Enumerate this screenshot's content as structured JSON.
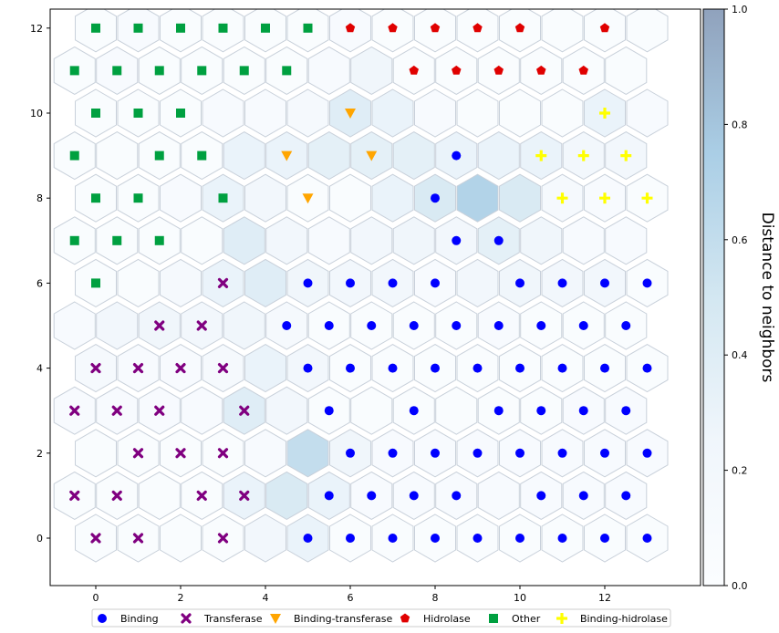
{
  "chart_data": {
    "type": "hexbin-som",
    "title": "",
    "xlabel": "",
    "ylabel": "",
    "xlim": [
      -1.7,
      14.3
    ],
    "ylim": [
      -1.15,
      12.45
    ],
    "x_ticks": [
      0,
      2,
      4,
      6,
      8,
      10,
      12
    ],
    "y_ticks": [
      0,
      2,
      4,
      6,
      8,
      10,
      12
    ],
    "grid_rows": 13,
    "grid_cols": 14,
    "colormap": "Blues",
    "colorbar": {
      "label": "Distance to neighbors",
      "range": [
        0,
        1
      ],
      "ticks": [
        0,
        0.2,
        0.4,
        0.6,
        0.8,
        1.0
      ],
      "tick_labels": [
        "0.0",
        "0.2",
        "0.4",
        "0.6",
        "0.8",
        "1.0"
      ]
    },
    "distance_map": [
      [
        0.05,
        0.05,
        0.05,
        0.05,
        0.2,
        0.3,
        0.05,
        0.05,
        0.05,
        0.05,
        0.05,
        0.05,
        0.05,
        0.05
      ],
      [
        0.05,
        0.05,
        0.05,
        0.05,
        0.3,
        0.45,
        0.3,
        0.1,
        0.1,
        0.1,
        0.1,
        0.1,
        0.1,
        0.1
      ],
      [
        0.05,
        0.05,
        0.05,
        0.05,
        0.1,
        0.6,
        0.25,
        0.1,
        0.1,
        0.1,
        0.1,
        0.1,
        0.1,
        0.1
      ],
      [
        0.1,
        0.1,
        0.1,
        0.1,
        0.4,
        0.2,
        0.05,
        0.05,
        0.05,
        0.05,
        0.05,
        0.05,
        0.1,
        0.1
      ],
      [
        0.15,
        0.1,
        0.1,
        0.15,
        0.3,
        0.2,
        0.05,
        0.05,
        0.05,
        0.05,
        0.05,
        0.05,
        0.05,
        0.05
      ],
      [
        0.1,
        0.2,
        0.25,
        0.2,
        0.25,
        0.15,
        0.05,
        0.05,
        0.05,
        0.05,
        0.1,
        0.05,
        0.05,
        0.05
      ],
      [
        0.05,
        0.05,
        0.15,
        0.3,
        0.4,
        0.25,
        0.2,
        0.2,
        0.1,
        0.2,
        0.25,
        0.2,
        0.2,
        0.05
      ],
      [
        0.05,
        0.05,
        0.05,
        0.05,
        0.4,
        0.2,
        0.1,
        0.2,
        0.25,
        0.2,
        0.35,
        0.25,
        0.1,
        0.1
      ],
      [
        0.05,
        0.05,
        0.1,
        0.3,
        0.2,
        0.05,
        0.05,
        0.3,
        0.45,
        0.7,
        0.45,
        0.15,
        0.1,
        0.05
      ],
      [
        0.05,
        0.05,
        0.05,
        0.05,
        0.3,
        0.3,
        0.35,
        0.35,
        0.35,
        0.3,
        0.3,
        0.3,
        0.2,
        0.2
      ],
      [
        0.05,
        0.05,
        0.05,
        0.1,
        0.1,
        0.15,
        0.4,
        0.3,
        0.1,
        0.05,
        0.05,
        0.05,
        0.3,
        0.1
      ],
      [
        0.05,
        0.1,
        0.05,
        0.05,
        0.05,
        0.05,
        0.1,
        0.25,
        0.05,
        0.05,
        0.05,
        0.05,
        0.05,
        0.05
      ],
      [
        0.05,
        0.1,
        0.05,
        0.05,
        0.05,
        0.05,
        0.1,
        0.05,
        0.05,
        0.05,
        0.05,
        0.05,
        0.05,
        0.05
      ]
    ],
    "classes": [
      {
        "name": "Binding",
        "marker": "circle",
        "color": "#0000ff"
      },
      {
        "name": "Transferase",
        "marker": "x",
        "color": "#800080"
      },
      {
        "name": "Binding-transferase",
        "marker": "triangle-down",
        "color": "#ffa500"
      },
      {
        "name": "Hidrolase",
        "marker": "pentagon",
        "color": "#e00000"
      },
      {
        "name": "Other",
        "marker": "square",
        "color": "#00a040"
      },
      {
        "name": "Binding-hidrolase",
        "marker": "plus",
        "color": "#ffff00"
      }
    ],
    "points": [
      {
        "cls": 4,
        "r": 12,
        "c": [
          0,
          1,
          2,
          3,
          4,
          5
        ]
      },
      {
        "cls": 3,
        "r": 12,
        "c": [
          7,
          8,
          9,
          11,
          13
        ]
      },
      {
        "cls": 4,
        "r": 11,
        "c": [
          0,
          1,
          2,
          3,
          4,
          5
        ]
      },
      {
        "cls": 3,
        "r": 11,
        "c": [
          6,
          7,
          8,
          9,
          10,
          12
        ]
      },
      {
        "cls": 4,
        "r": 10,
        "c": [
          0,
          1,
          2,
          3,
          4,
          5
        ]
      },
      {
        "cls": 3,
        "r": 10,
        "c": [
          8,
          9,
          10,
          11,
          12
        ]
      },
      {
        "cls": 4,
        "r": 9,
        "c": [
          0,
          1,
          2
        ]
      },
      {
        "cls": 2,
        "r": 9,
        "c": [
          6
        ]
      },
      {
        "cls": 5,
        "r": 9,
        "c": [
          12
        ]
      },
      {
        "cls": 4,
        "r": 8,
        "c": [
          0,
          2,
          3
        ]
      },
      {
        "cls": 2,
        "r": 8,
        "c": [
          5,
          7
        ]
      },
      {
        "cls": 0,
        "r": 8,
        "c": [
          9
        ]
      },
      {
        "cls": 5,
        "r": 8,
        "c": [
          11,
          12,
          13
        ]
      },
      {
        "cls": 4,
        "r": 7,
        "c": [
          0,
          1,
          3
        ]
      },
      {
        "cls": 2,
        "r": 7,
        "c": [
          5
        ]
      },
      {
        "cls": 0,
        "r": 7,
        "c": [
          8
        ]
      },
      {
        "cls": 5,
        "r": 7,
        "c": [
          11,
          12,
          13
        ]
      },
      {
        "cls": 4,
        "r": 6,
        "c": [
          0,
          1,
          2
        ]
      },
      {
        "cls": 0,
        "r": 6,
        "c": [
          9,
          10
        ]
      },
      {
        "cls": 4,
        "r": 5,
        "c": [
          0
        ]
      },
      {
        "cls": 1,
        "r": 5,
        "c": [
          3
        ]
      },
      {
        "cls": 0,
        "r": 5,
        "c": [
          5,
          6,
          7,
          8,
          10,
          11,
          12,
          13
        ]
      },
      {
        "cls": 1,
        "r": 4,
        "c": [
          2,
          3
        ]
      },
      {
        "cls": 0,
        "r": 4,
        "c": [
          5,
          6,
          7,
          8,
          9,
          10,
          11,
          12,
          13
        ]
      },
      {
        "cls": 1,
        "r": 3,
        "c": [
          0,
          1,
          2,
          3
        ]
      },
      {
        "cls": 0,
        "r": 3,
        "c": [
          5,
          6,
          7,
          8,
          9,
          10,
          11,
          12,
          13
        ]
      },
      {
        "cls": 1,
        "r": 2,
        "c": [
          0,
          1,
          2,
          4
        ]
      },
      {
        "cls": 0,
        "r": 2,
        "c": [
          6,
          8,
          10,
          11,
          12,
          13
        ]
      },
      {
        "cls": 1,
        "r": 1,
        "c": [
          1,
          2,
          3
        ]
      },
      {
        "cls": 0,
        "r": 1,
        "c": [
          6,
          7,
          8,
          9,
          10,
          11,
          12,
          13
        ]
      },
      {
        "cls": 1,
        "r": 0,
        "c": [
          0,
          1,
          3,
          4
        ]
      },
      {
        "cls": 0,
        "r": 0,
        "c": [
          6,
          7,
          8,
          9,
          11,
          12,
          13
        ]
      },
      {
        "cls": 1,
        "r": -1,
        "c": [
          0,
          1,
          3
        ]
      },
      {
        "cls": 0,
        "r": -1,
        "c": [
          5,
          6,
          7,
          8,
          9,
          10,
          11,
          12,
          13
        ]
      }
    ],
    "legend_position": "bottom-center"
  }
}
